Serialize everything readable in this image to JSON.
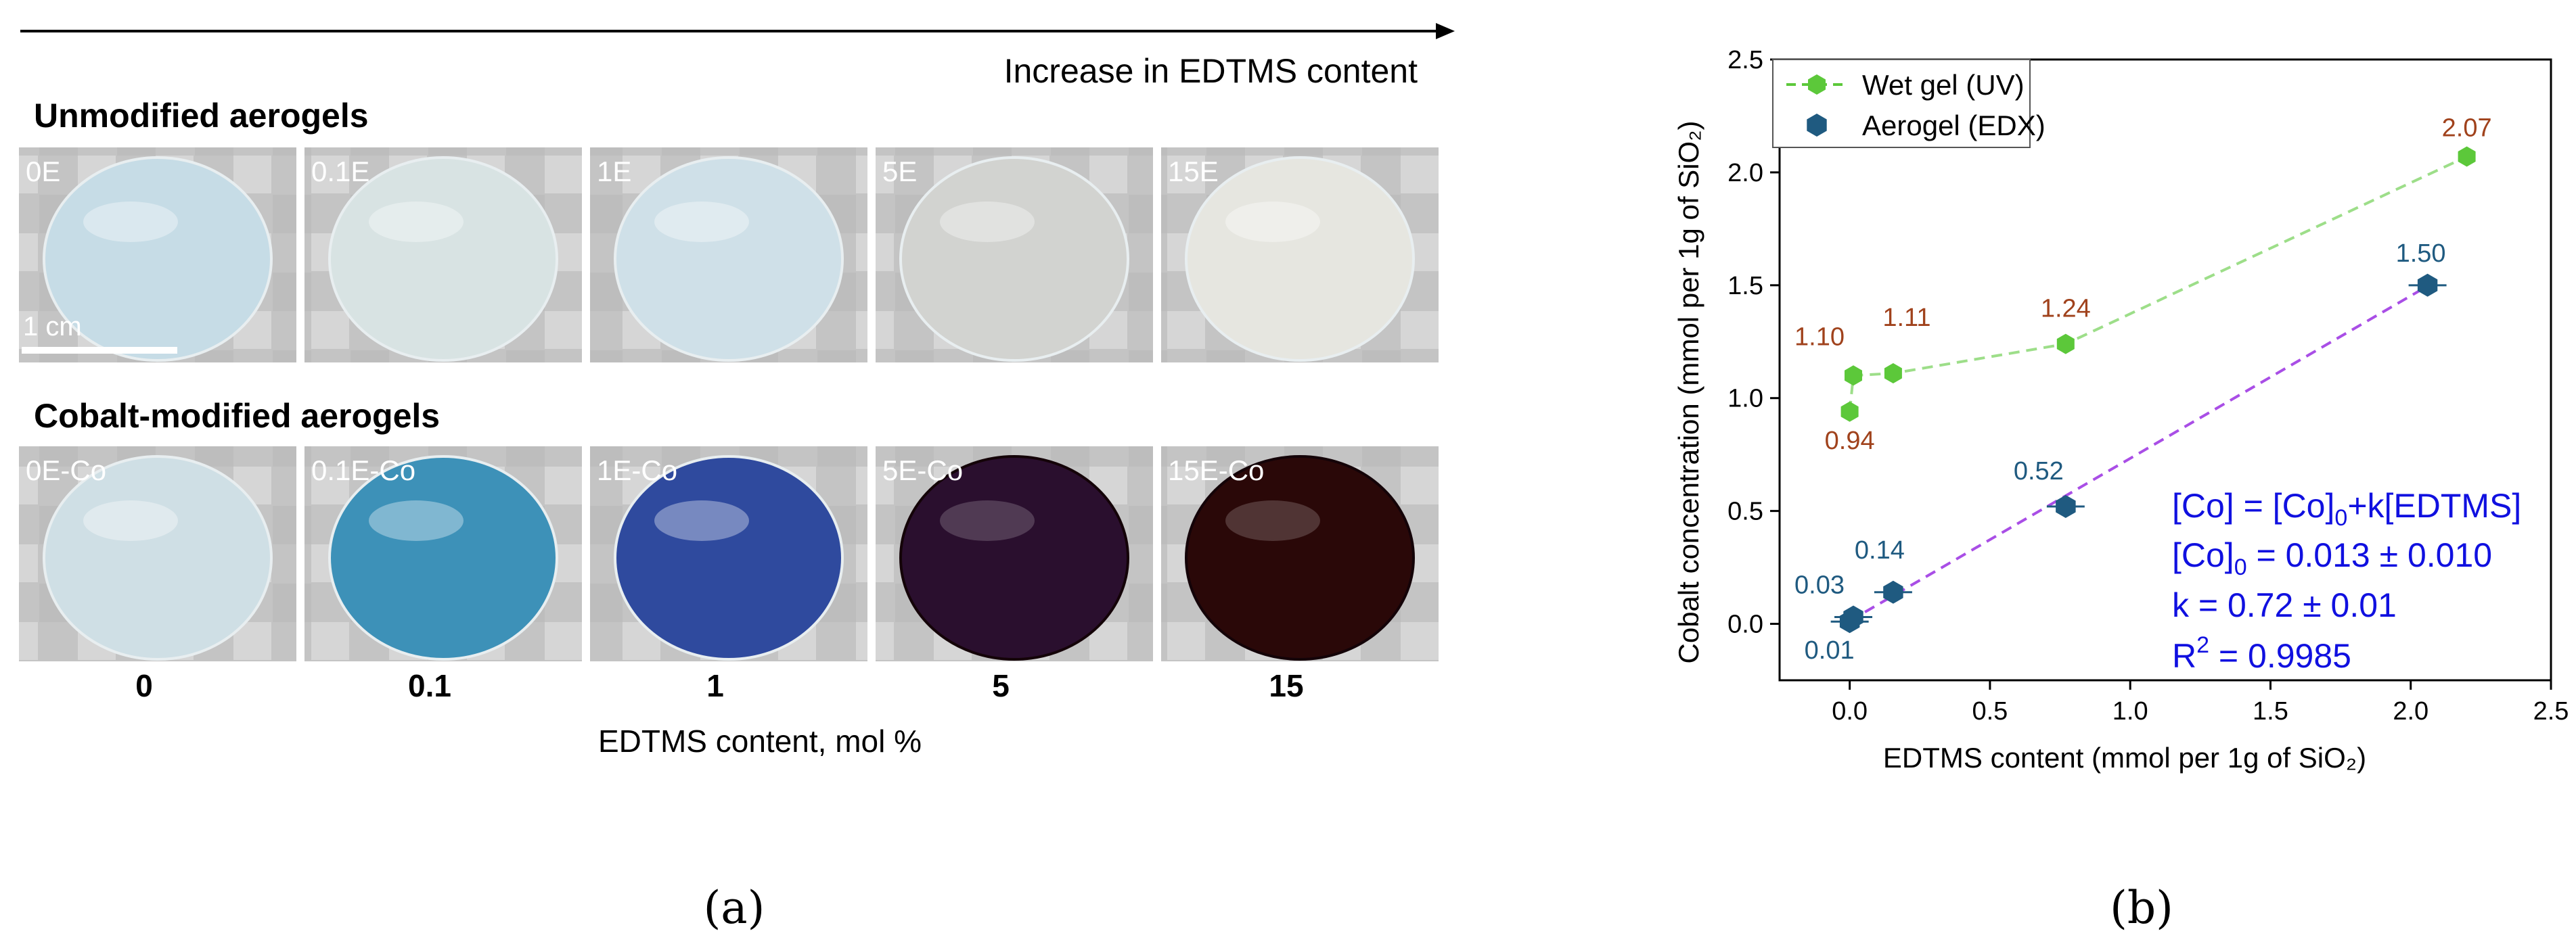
{
  "panel_a": {
    "arrow_label": "Increase in EDTMS content",
    "row1_title": "Unmodified aerogels",
    "row2_title": "Cobalt-modified aerogels",
    "scale_bar_label": "1 cm",
    "row1_samples": [
      "0E",
      "0.1E",
      "1E",
      "5E",
      "15E"
    ],
    "row2_samples": [
      "0E-Co",
      "0.1E-Co",
      "1E-Co",
      "5E-Co",
      "15E-Co"
    ],
    "content_values": [
      "0",
      "0.1",
      "1",
      "5",
      "15"
    ],
    "xlabel": "EDTMS content, mol %",
    "caption": "(a)",
    "colors": {
      "row1": [
        "#c6dce6",
        "#d8e3e3",
        "#cfe0e8",
        "#d2d3d0",
        "#e6e6e0"
      ],
      "row2": [
        "#cfdfe5",
        "#3d91b8",
        "#2f4a9e",
        "#2a0f2e",
        "#2a0808"
      ]
    }
  },
  "panel_b": {
    "caption": "(b)",
    "equation": {
      "line1_a": "[Co] = [Co]",
      "line1_sub": "0",
      "line1_b": "+k[EDTMS]",
      "line2_a": "[Co]",
      "line2_sub": "0",
      "line2_b": " = 0.013 ± 0.010",
      "line3": "k = 0.72 ± 0.01",
      "line4_a": "R",
      "line4_sup": "2",
      "line4_b": " = 0.9985"
    }
  },
  "chart_data": {
    "type": "scatter",
    "xlabel": "EDTMS content (mmol per 1g of SiO₂)",
    "ylabel": "Cobalt concentration (mmol per 1g of SiO₂)",
    "xlim": [
      -0.25,
      2.5
    ],
    "ylim": [
      -0.25,
      2.5
    ],
    "xticks": [
      0.0,
      0.5,
      1.0,
      1.5,
      2.0,
      2.5
    ],
    "yticks": [
      0.0,
      0.5,
      1.0,
      1.5,
      2.0,
      2.5
    ],
    "grid": false,
    "legend_position": "top-left",
    "series": [
      {
        "name": "Wet gel (UV)",
        "color": "#5cc83a",
        "label_color": "#a0421c",
        "x": [
          0.0,
          0.013,
          0.155,
          0.77,
          2.2
        ],
        "y": [
          0.94,
          1.1,
          1.11,
          1.24,
          2.07
        ],
        "labels": [
          "0.94",
          "1.10",
          "1.11",
          "1.24",
          "2.07"
        ]
      },
      {
        "name": "Aerogel (EDX)",
        "color": "#1f5a80",
        "label_color": "#1f5a80",
        "x": [
          0.0,
          0.013,
          0.155,
          0.77,
          2.06
        ],
        "y": [
          0.01,
          0.03,
          0.14,
          0.52,
          1.5
        ],
        "labels": [
          "0.01",
          "0.03",
          "0.14",
          "0.52",
          "1.50"
        ]
      }
    ],
    "fit_line": {
      "color": "#a94ee6",
      "intercept": 0.013,
      "slope": 0.72,
      "x_range": [
        0.0,
        2.06
      ]
    }
  }
}
